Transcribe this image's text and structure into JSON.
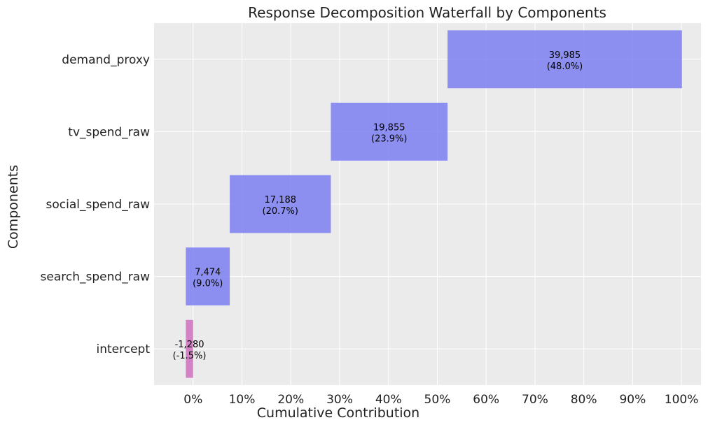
{
  "chart_data": {
    "type": "bar",
    "orientation": "horizontal",
    "subtype": "waterfall",
    "title": "Response Decomposition Waterfall by Components",
    "xlabel": "Cumulative Contribution",
    "ylabel": "Components",
    "xlim": [
      -8,
      104
    ],
    "x_ticks": [
      0,
      10,
      20,
      30,
      40,
      50,
      60,
      70,
      80,
      90,
      100
    ],
    "x_tick_labels": [
      "0%",
      "10%",
      "20%",
      "30%",
      "40%",
      "50%",
      "60%",
      "70%",
      "80%",
      "90%",
      "100%"
    ],
    "grid": true,
    "categories": [
      "intercept",
      "search_spend_raw",
      "social_spend_raw",
      "tv_spend_raw",
      "demand_proxy"
    ],
    "values": [
      -1280,
      7474,
      17188,
      19855,
      39985
    ],
    "percent": [
      -1.5,
      9.0,
      20.7,
      23.9,
      48.0
    ],
    "value_labels": [
      "-1,280",
      "7,474",
      "17,188",
      "19,855",
      "39,985"
    ],
    "percent_labels": [
      "(-1.5%)",
      "(9.0%)",
      "(20.7%)",
      "(23.9%)",
      "(48.0%)"
    ],
    "colors": {
      "positive": "#7b7ff0",
      "negative": "#d070c0",
      "background": "#ebebeb",
      "grid": "#ffffff"
    }
  }
}
